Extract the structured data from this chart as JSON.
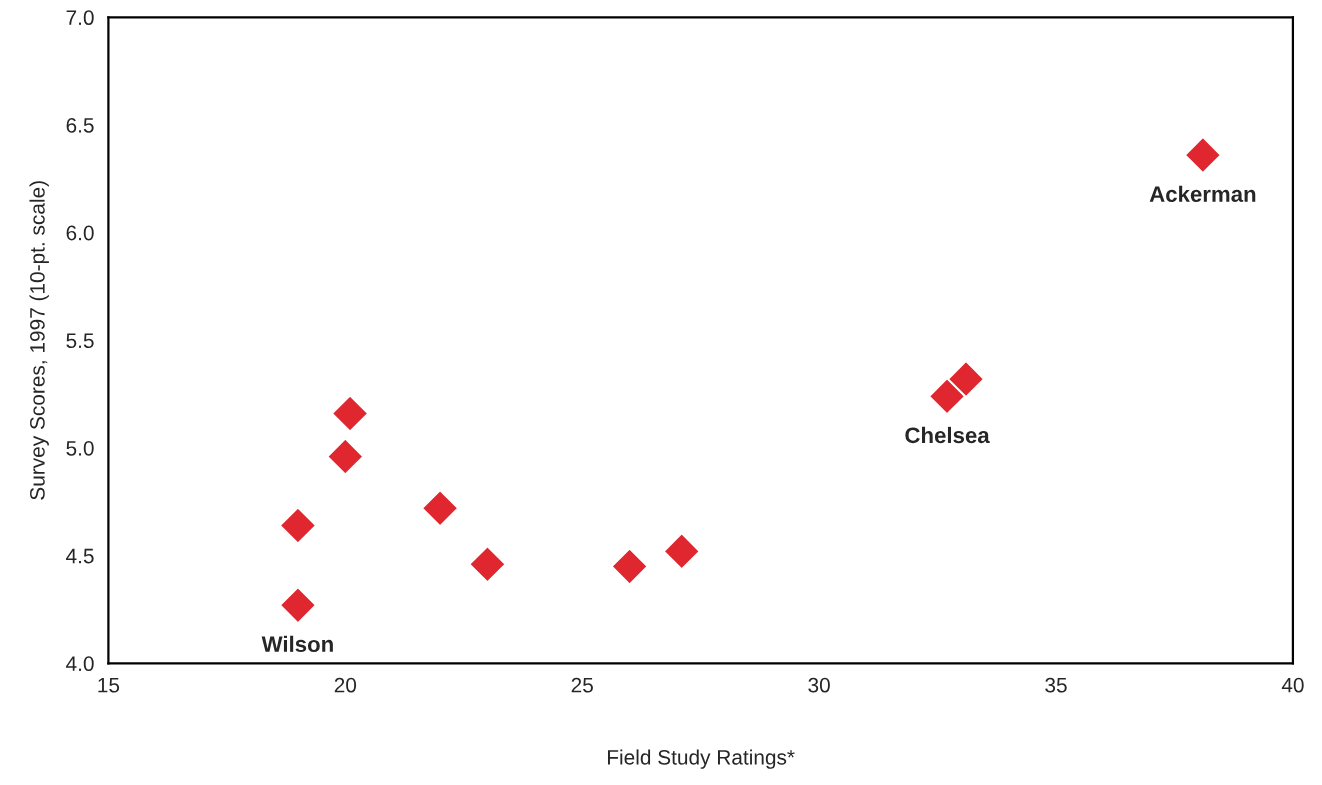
{
  "chart_data": {
    "type": "scatter",
    "xlabel": "Field Study Ratings*",
    "ylabel": "Survey Scores, 1997 (10-pt. scale)",
    "x": [
      19.0,
      19.0,
      20.1,
      20.0,
      22.0,
      23.0,
      26.0,
      27.1,
      32.7,
      33.1,
      38.1
    ],
    "series": [
      {
        "color": "#e0262e",
        "values": [
          4.27,
          4.64,
          5.16,
          4.96,
          4.72,
          4.46,
          4.45,
          4.52,
          5.24,
          5.32,
          6.36
        ]
      }
    ],
    "marker": "diamond",
    "grid": false,
    "legend": false,
    "xlim": [
      15,
      40
    ],
    "xticks": [
      15,
      20,
      25,
      30,
      35,
      40
    ],
    "ylim": [
      4.0,
      7.0
    ],
    "yticks": [
      {
        "value": 4.0,
        "label": "4.0"
      },
      {
        "value": 4.5,
        "label": "4.5"
      },
      {
        "value": 5.0,
        "label": "5.0"
      },
      {
        "value": 5.5,
        "label": "5.5"
      },
      {
        "value": 6.0,
        "label": "6.0"
      },
      {
        "value": 6.5,
        "label": "6.5"
      },
      {
        "value": 7.0,
        "label": "7.0"
      }
    ],
    "annotations": [
      {
        "text": "Wilson",
        "x": 19.0,
        "y": 4.27
      },
      {
        "text": "Chelsea",
        "x": 32.7,
        "y": 5.24
      },
      {
        "text": "Ackerman",
        "x": 38.1,
        "y": 6.36
      }
    ]
  }
}
